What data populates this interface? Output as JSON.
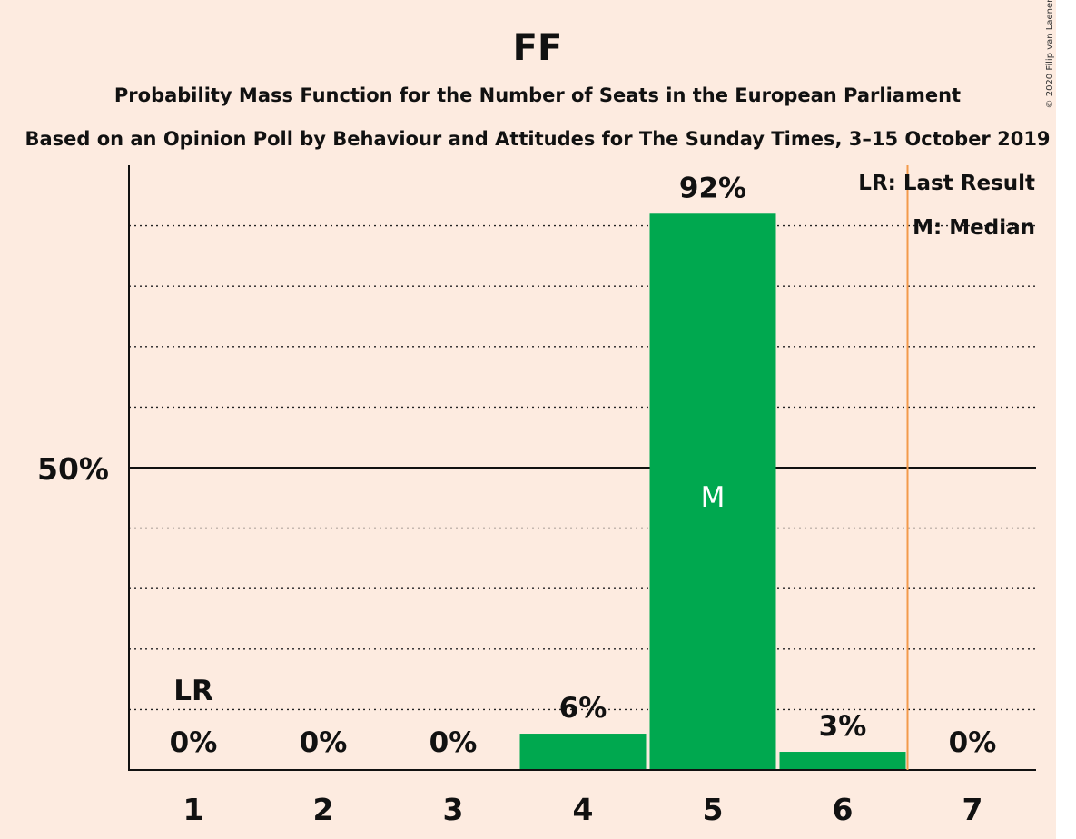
{
  "chart_data": {
    "type": "bar",
    "title": "FF",
    "subtitle": "Probability Mass Function for the Number of Seats in the European Parliament",
    "subtitle2": "Based on an Opinion Poll by Behaviour and Attitudes for The Sunday Times, 3–15 October 2019",
    "copyright": "© 2020 Filip van Laenen",
    "categories": [
      "1",
      "2",
      "3",
      "4",
      "5",
      "6",
      "7"
    ],
    "values": [
      0,
      0,
      0,
      6,
      92,
      3,
      0
    ],
    "value_labels": [
      "0%",
      "0%",
      "0%",
      "6%",
      "92%",
      "3%",
      "0%"
    ],
    "ylim": [
      0,
      100
    ],
    "y_tick_label": "50%",
    "y_tick_value": 50,
    "gridlines": [
      10,
      20,
      30,
      40,
      60,
      70,
      80,
      90
    ],
    "last_result_category": "1",
    "last_result_marker": "LR",
    "median_category": "5",
    "median_marker": "M",
    "threshold_after_category": "6",
    "legend": [
      "LR: Last Result",
      "M: Median"
    ],
    "colors": {
      "background": "#fdebe0",
      "bar": "#00a84f",
      "threshold": "#f39a4a",
      "text": "#111111"
    }
  }
}
